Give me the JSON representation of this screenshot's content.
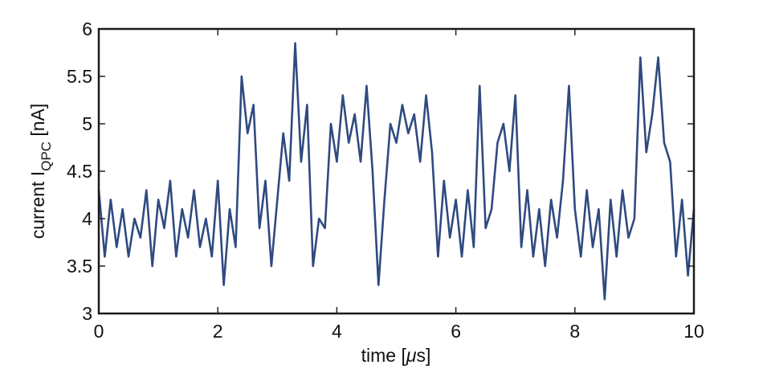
{
  "chart_data": {
    "type": "line",
    "xlabel": {
      "main": "time [",
      "unit": "μ",
      "tail": "s]"
    },
    "ylabel": {
      "main": "current I",
      "sub": "QPC",
      "tail": " [nA]"
    },
    "x": [
      0,
      0.1,
      0.2,
      0.3,
      0.4,
      0.5,
      0.6,
      0.7,
      0.8,
      0.9,
      1,
      1.1,
      1.2,
      1.3,
      1.4,
      1.5,
      1.6,
      1.7,
      1.8,
      1.9,
      2,
      2.1,
      2.2,
      2.3,
      2.4,
      2.5,
      2.6,
      2.7,
      2.8,
      2.9,
      3,
      3.1,
      3.2,
      3.3,
      3.4,
      3.5,
      3.6,
      3.7,
      3.8,
      3.9,
      4,
      4.1,
      4.2,
      4.3,
      4.4,
      4.5,
      4.6,
      4.7,
      4.8,
      4.9,
      5,
      5.1,
      5.2,
      5.3,
      5.4,
      5.5,
      5.6,
      5.7,
      5.8,
      5.9,
      6,
      6.1,
      6.2,
      6.3,
      6.4,
      6.5,
      6.6,
      6.7,
      6.8,
      6.9,
      7,
      7.1,
      7.2,
      7.3,
      7.4,
      7.5,
      7.6,
      7.7,
      7.8,
      7.9,
      8,
      8.1,
      8.2,
      8.3,
      8.4,
      8.5,
      8.6,
      8.7,
      8.8,
      8.9,
      9,
      9.1,
      9.2,
      9.3,
      9.4,
      9.5,
      9.6,
      9.7,
      9.8,
      9.9,
      10
    ],
    "series": [
      {
        "name": "current",
        "color": "#2f4a80",
        "values": [
          4.3,
          3.6,
          4.2,
          3.7,
          4.1,
          3.6,
          4.0,
          3.8,
          4.3,
          3.5,
          4.2,
          3.9,
          4.4,
          3.6,
          4.1,
          3.8,
          4.3,
          3.7,
          4.0,
          3.6,
          4.4,
          3.3,
          4.1,
          3.7,
          5.5,
          4.9,
          5.2,
          3.9,
          4.4,
          3.5,
          4.2,
          4.9,
          4.4,
          5.85,
          4.6,
          5.2,
          3.5,
          4.0,
          3.9,
          5.0,
          4.6,
          5.3,
          4.8,
          5.1,
          4.6,
          5.4,
          4.5,
          3.3,
          4.2,
          5.0,
          4.8,
          5.2,
          4.9,
          5.1,
          4.6,
          5.3,
          4.7,
          3.6,
          4.4,
          3.8,
          4.2,
          3.6,
          4.3,
          3.7,
          5.4,
          3.9,
          4.1,
          4.8,
          5.0,
          4.5,
          5.3,
          3.7,
          4.3,
          3.6,
          4.1,
          3.5,
          4.2,
          3.8,
          4.4,
          5.4,
          4.1,
          3.6,
          4.3,
          3.7,
          4.1,
          3.15,
          4.2,
          3.6,
          4.3,
          3.8,
          4.0,
          5.7,
          4.7,
          5.1,
          5.7,
          4.8,
          4.6,
          3.6,
          4.2,
          3.4,
          4.1
        ]
      }
    ],
    "xlim": [
      0,
      10
    ],
    "xticks": [
      0,
      2,
      4,
      6,
      8,
      10
    ],
    "ylim": [
      3,
      6
    ],
    "yticks": [
      3,
      3.5,
      4,
      4.5,
      5,
      5.5,
      6
    ]
  }
}
